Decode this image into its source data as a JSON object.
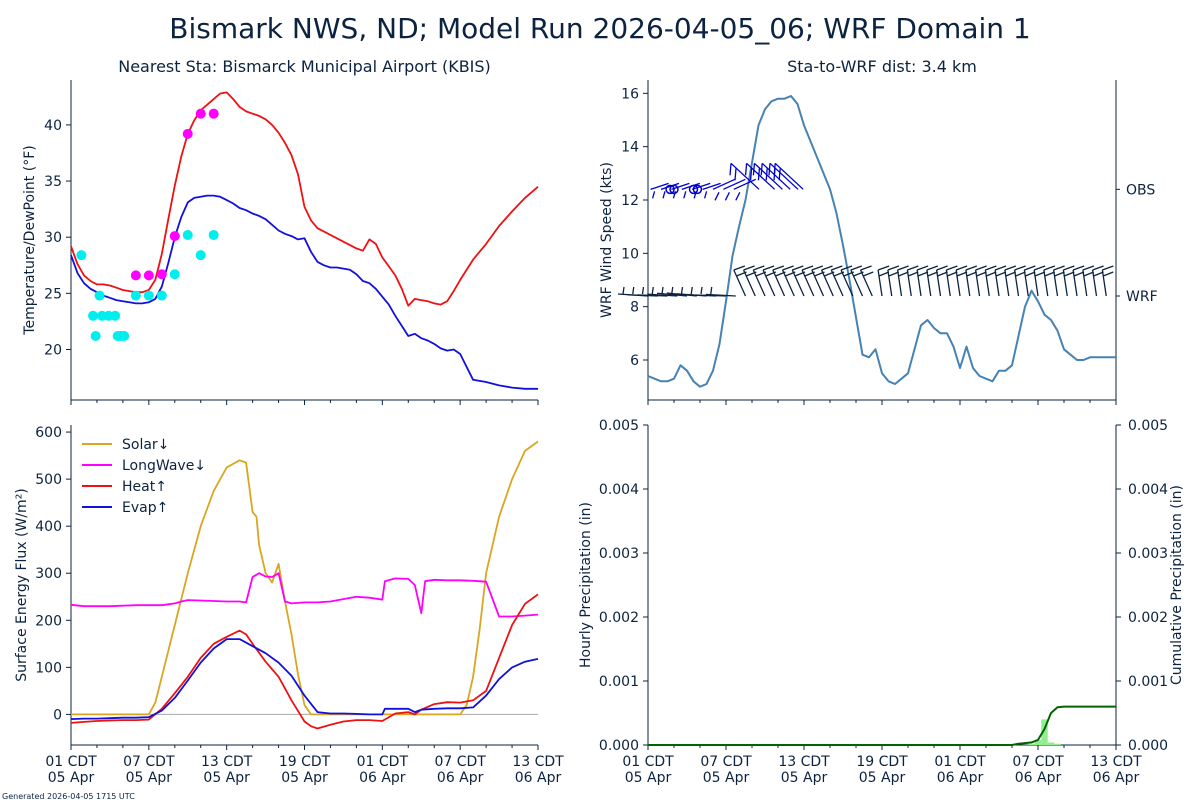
{
  "title": "Bismark NWS, ND; Model Run 2026-04-05_06; WRF Domain 1",
  "footer": "Generated 2026-04-05 1715 UTC",
  "colors": {
    "text": "#0c2340",
    "temp": "#ee1111",
    "dew": "#1111dd",
    "obs_temp": "#ff00ff",
    "obs_dew": "#00eeee",
    "wind_speed": "#4682b4",
    "barb_obs": "#0000cc",
    "barb_wrf": "#0c2340",
    "solar": "#daa520",
    "longwave": "#ff00ff",
    "heat": "#ee1111",
    "evap": "#1111dd",
    "precip_bar": "#90ee90",
    "precip_cum": "#006400"
  },
  "chart_data": [
    {
      "type": "line",
      "panel": "temperature",
      "title": "Nearest Sta: Bismarck Municipal Airport (KBIS)",
      "ylabel": "Temperature/DewPoint (°F)",
      "xlabel": "",
      "xlim": [
        0,
        36
      ],
      "ylim": [
        15.5,
        44
      ],
      "yticks": [
        20,
        25,
        30,
        35,
        40
      ],
      "x_tick_hours": [
        0,
        6,
        12,
        18,
        24,
        30,
        36
      ],
      "series": [
        {
          "name": "Temperature",
          "x": [
            0,
            0.5,
            1,
            1.5,
            2,
            2.5,
            3,
            3.5,
            4,
            4.5,
            5,
            5.5,
            6,
            6.5,
            7,
            7.5,
            8,
            8.5,
            9,
            9.5,
            10,
            10.5,
            11,
            11.5,
            12,
            12.5,
            13,
            13.5,
            14,
            14.5,
            15,
            15.5,
            16,
            16.5,
            17,
            17.5,
            18,
            18.5,
            19,
            19.5,
            20,
            20.5,
            21,
            21.5,
            22,
            22.5,
            23,
            23.5,
            24,
            24.5,
            25,
            25.5,
            26,
            26.5,
            27,
            27.5,
            28,
            28.5,
            29,
            29.5,
            30,
            31,
            32,
            33,
            34,
            35,
            36
          ],
          "y": [
            29.2,
            27.6,
            26.6,
            26.1,
            25.8,
            25.8,
            25.7,
            25.5,
            25.3,
            25.2,
            25.1,
            25.1,
            25.3,
            26.2,
            28.5,
            31.6,
            34.6,
            37.2,
            39.2,
            40.4,
            41.3,
            41.8,
            42.3,
            42.8,
            42.9,
            42.3,
            41.6,
            41.2,
            41.0,
            40.8,
            40.5,
            40.0,
            39.3,
            38.4,
            37.3,
            35.6,
            32.7,
            31.5,
            30.8,
            30.5,
            30.2,
            29.9,
            29.6,
            29.3,
            29.0,
            28.8,
            29.8,
            29.4,
            28.2,
            27.4,
            26.6,
            25.4,
            23.9,
            24.5,
            24.4,
            24.3,
            24.1,
            24.0,
            24.3,
            25.2,
            26.2,
            28.0,
            29.4,
            31.0,
            32.3,
            33.5,
            34.5
          ]
        },
        {
          "name": "Dew Point",
          "x": [
            0,
            0.5,
            1,
            1.5,
            2,
            2.5,
            3,
            3.5,
            4,
            4.5,
            5,
            5.5,
            6,
            6.5,
            7,
            7.5,
            8,
            8.5,
            9,
            9.5,
            10,
            10.5,
            11,
            11.5,
            12,
            12.5,
            13,
            13.5,
            14,
            14.5,
            15,
            15.5,
            16,
            16.5,
            17,
            17.5,
            18,
            18.5,
            19,
            19.5,
            20,
            20.5,
            21,
            21.5,
            22,
            22.5,
            23,
            23.5,
            24,
            24.5,
            25,
            25.5,
            26,
            26.5,
            27,
            27.5,
            28,
            28.5,
            29,
            29.5,
            30,
            31,
            32,
            33,
            34,
            35,
            36
          ],
          "y": [
            28.4,
            26.8,
            25.9,
            25.4,
            25.1,
            24.8,
            24.6,
            24.4,
            24.3,
            24.2,
            24.1,
            24.1,
            24.2,
            24.5,
            25.6,
            27.7,
            30.0,
            31.8,
            33.1,
            33.5,
            33.6,
            33.7,
            33.7,
            33.6,
            33.3,
            33.0,
            32.6,
            32.4,
            32.1,
            31.9,
            31.6,
            31.1,
            30.6,
            30.3,
            30.1,
            29.8,
            29.9,
            28.7,
            27.8,
            27.5,
            27.3,
            27.3,
            27.2,
            27.1,
            26.7,
            26.1,
            25.9,
            25.4,
            24.7,
            24.0,
            23.0,
            22.1,
            21.2,
            21.4,
            21.0,
            20.8,
            20.5,
            20.1,
            19.9,
            20.0,
            19.6,
            17.3,
            17.1,
            16.8,
            16.6,
            16.5,
            16.5
          ]
        },
        {
          "name": "Obs Temperature",
          "points": [
            [
              5.0,
              26.6
            ],
            [
              6.0,
              26.6
            ],
            [
              7.0,
              26.7
            ],
            [
              8.0,
              30.1
            ],
            [
              9.0,
              39.2
            ],
            [
              10.0,
              41.0
            ],
            [
              11.0,
              41.0
            ]
          ]
        },
        {
          "name": "Obs Dew Point",
          "points": [
            [
              0.8,
              28.4
            ],
            [
              1.7,
              23.0
            ],
            [
              1.9,
              21.2
            ],
            [
              2.2,
              24.8
            ],
            [
              2.4,
              23.0
            ],
            [
              2.9,
              23.0
            ],
            [
              3.4,
              23.0
            ],
            [
              3.6,
              21.2
            ],
            [
              3.8,
              21.2
            ],
            [
              4.0,
              21.2
            ],
            [
              4.1,
              21.2
            ],
            [
              5.0,
              24.8
            ],
            [
              6.0,
              24.8
            ],
            [
              7.0,
              24.8
            ],
            [
              8.0,
              26.7
            ],
            [
              9.0,
              30.2
            ],
            [
              10.0,
              28.4
            ],
            [
              11.0,
              30.2
            ]
          ]
        }
      ]
    },
    {
      "type": "line",
      "panel": "wind",
      "title": "Sta-to-WRF dist: 3.4 km",
      "ylabel": "WRF Wind Speed (kts)",
      "xlabel": "",
      "xlim": [
        0,
        36
      ],
      "ylim": [
        4.5,
        16.5
      ],
      "yticks": [
        6,
        8,
        10,
        12,
        14,
        16
      ],
      "x_tick_hours": [
        0,
        6,
        12,
        18,
        24,
        30,
        36
      ],
      "right_labels": [
        {
          "label": "OBS",
          "y": 12.4
        },
        {
          "label": "WRF",
          "y": 8.4
        }
      ],
      "series": [
        {
          "name": "WRF Wind Speed",
          "x": [
            0,
            0.5,
            1,
            1.5,
            2,
            2.5,
            3,
            3.5,
            4,
            4.5,
            5,
            5.5,
            6,
            6.5,
            7,
            7.5,
            8,
            8.5,
            9,
            9.5,
            10,
            10.5,
            11,
            11.5,
            12,
            12.5,
            13,
            13.5,
            14,
            14.5,
            15,
            15.5,
            16,
            16.5,
            17,
            17.5,
            18,
            18.5,
            19,
            19.5,
            20,
            20.5,
            21,
            21.5,
            22,
            22.5,
            23,
            23.5,
            24,
            24.5,
            25,
            25.5,
            26,
            26.5,
            27,
            27.5,
            28,
            28.5,
            29,
            29.5,
            30,
            30.5,
            31,
            31.5,
            32,
            32.5,
            33,
            33.5,
            34,
            34.5,
            35,
            35.5,
            36
          ],
          "y": [
            5.4,
            5.3,
            5.2,
            5.2,
            5.3,
            5.8,
            5.6,
            5.2,
            5.0,
            5.1,
            5.6,
            6.6,
            8.2,
            9.9,
            11.0,
            12.0,
            13.4,
            14.8,
            15.4,
            15.7,
            15.8,
            15.8,
            15.9,
            15.6,
            14.8,
            14.2,
            13.6,
            13.0,
            12.4,
            11.5,
            10.3,
            9.0,
            7.6,
            6.2,
            6.1,
            6.4,
            5.5,
            5.2,
            5.1,
            5.3,
            5.5,
            6.4,
            7.3,
            7.5,
            7.2,
            7.0,
            7.0,
            6.5,
            5.7,
            6.5,
            5.7,
            5.4,
            5.3,
            5.2,
            5.6,
            5.6,
            5.8,
            6.9,
            8.0,
            8.6,
            8.2,
            7.7,
            7.5,
            7.1,
            6.4,
            6.2,
            6.0,
            6.0,
            6.1,
            6.1,
            6.1,
            6.1,
            6.1
          ]
        }
      ]
    },
    {
      "type": "line",
      "panel": "energy",
      "title": "",
      "ylabel": "Surface Energy Flux (W/m²)",
      "xlabel": "",
      "xlim": [
        0,
        36
      ],
      "ylim": [
        -65,
        615
      ],
      "yticks": [
        0,
        100,
        200,
        300,
        400,
        500,
        600
      ],
      "x_tick_hours": [
        0,
        6,
        12,
        18,
        24,
        30,
        36
      ],
      "x_tick_labels": [
        "01 CDT\n05 Apr",
        "07 CDT\n05 Apr",
        "13 CDT\n05 Apr",
        "19 CDT\n05 Apr",
        "01 CDT\n06 Apr",
        "07 CDT\n06 Apr",
        "13 CDT\n06 Apr"
      ],
      "legend": [
        "Solar↓",
        "LongWave↓",
        "Heat↑",
        "Evap↑"
      ],
      "series": [
        {
          "name": "Solar↓",
          "x": [
            0,
            1,
            2,
            3,
            4,
            5,
            6,
            6.5,
            7,
            8,
            9,
            10,
            11,
            12,
            13,
            13.5,
            14,
            14.3,
            14.5,
            15,
            15.5,
            16,
            16.5,
            17,
            17.5,
            18,
            18.5,
            19,
            20,
            21,
            22,
            23,
            24,
            25,
            26,
            27,
            28,
            29,
            30,
            30.5,
            31,
            31.5,
            32,
            33,
            34,
            35,
            36
          ],
          "y": [
            0,
            0,
            0,
            0,
            0,
            0,
            0,
            25,
            80,
            190,
            300,
            400,
            475,
            525,
            540,
            535,
            430,
            420,
            360,
            300,
            280,
            320,
            240,
            170,
            85,
            20,
            0,
            0,
            0,
            0,
            0,
            0,
            0,
            0,
            0,
            0,
            0,
            0,
            0,
            20,
            80,
            180,
            300,
            420,
            500,
            560,
            580
          ]
        },
        {
          "name": "LongWave↓",
          "x": [
            0,
            1,
            2,
            3,
            4,
            5,
            6,
            7,
            8,
            8.5,
            9,
            10,
            11,
            12,
            13,
            13.5,
            14,
            14.5,
            15,
            15.5,
            16,
            16.5,
            17,
            18,
            19,
            20,
            21,
            22,
            23,
            24,
            24.2,
            25,
            26,
            26.5,
            27,
            27.3,
            28,
            29,
            30,
            31,
            32,
            33,
            34,
            35,
            36
          ],
          "y": [
            233,
            230,
            230,
            230,
            231,
            232,
            232,
            232,
            236,
            240,
            243,
            242,
            241,
            240,
            240,
            238,
            292,
            300,
            293,
            292,
            300,
            240,
            236,
            238,
            238,
            240,
            245,
            250,
            248,
            244,
            283,
            289,
            288,
            275,
            215,
            283,
            286,
            285,
            285,
            284,
            282,
            208,
            208,
            210,
            212
          ]
        },
        {
          "name": "Heat↑",
          "x": [
            0,
            1,
            2,
            3,
            4,
            5,
            6,
            7,
            8,
            9,
            10,
            11,
            12,
            13,
            13.5,
            14,
            15,
            16,
            17,
            18,
            18.5,
            19,
            20,
            21,
            22,
            23,
            24,
            25,
            26,
            26.5,
            27,
            28,
            29,
            30,
            31,
            32,
            33,
            34,
            35,
            36
          ],
          "y": [
            -18,
            -16,
            -14,
            -13,
            -12,
            -12,
            -11,
            12,
            45,
            80,
            120,
            150,
            165,
            178,
            170,
            150,
            112,
            80,
            30,
            -15,
            -25,
            -30,
            -22,
            -15,
            -12,
            -12,
            -14,
            2,
            5,
            0,
            10,
            22,
            26,
            25,
            30,
            50,
            120,
            190,
            235,
            255
          ]
        },
        {
          "name": "Evap↑",
          "x": [
            0,
            1,
            2,
            3,
            4,
            5,
            6,
            7,
            8,
            9,
            10,
            11,
            12,
            13,
            14,
            15,
            16,
            17,
            18,
            19,
            20,
            21,
            22,
            23,
            24,
            24.2,
            25,
            26,
            26.5,
            27,
            28,
            29,
            30,
            31,
            32,
            33,
            34,
            35,
            36
          ],
          "y": [
            -10,
            -9,
            -9,
            -8,
            -7,
            -7,
            -6,
            8,
            35,
            72,
            110,
            140,
            160,
            160,
            145,
            130,
            110,
            82,
            40,
            5,
            2,
            2,
            1,
            0,
            0,
            12,
            12,
            12,
            5,
            10,
            12,
            13,
            13,
            15,
            40,
            75,
            100,
            112,
            118
          ]
        }
      ]
    },
    {
      "type": "area",
      "panel": "precipitation",
      "title": "",
      "ylabel": "Hourly Precipitation (in)",
      "ylabel_right": "Cumulative Precipitation (in)",
      "xlabel": "",
      "xlim": [
        0,
        36
      ],
      "ylim": [
        0,
        0.005
      ],
      "yticks": [
        "0.000",
        "0.001",
        "0.002",
        "0.003",
        "0.004",
        "0.005"
      ],
      "x_tick_hours": [
        0,
        6,
        12,
        18,
        24,
        30,
        36
      ],
      "x_tick_labels": [
        "01 CDT\n05 Apr",
        "07 CDT\n05 Apr",
        "13 CDT\n05 Apr",
        "19 CDT\n05 Apr",
        "01 CDT\n06 Apr",
        "07 CDT\n06 Apr",
        "13 CDT\n06 Apr"
      ],
      "series": [
        {
          "name": "Hourly Precipitation",
          "x": [
            29,
            29.5,
            30,
            30.5,
            31,
            31.5,
            32,
            32.5
          ],
          "y": [
            0,
            2e-05,
            8e-05,
            0.0004,
            4e-05,
            2e-05,
            0,
            0
          ]
        },
        {
          "name": "Cumulative Precipitation",
          "x": [
            0,
            28,
            28.5,
            29,
            29.5,
            30,
            30.5,
            31,
            31.5,
            32,
            33,
            34,
            35,
            36
          ],
          "y": [
            0,
            0,
            2e-05,
            3e-05,
            4e-05,
            8e-05,
            0.00025,
            0.0005,
            0.00059,
            0.0006,
            0.0006,
            0.0006,
            0.0006,
            0.0006
          ]
        }
      ]
    }
  ]
}
